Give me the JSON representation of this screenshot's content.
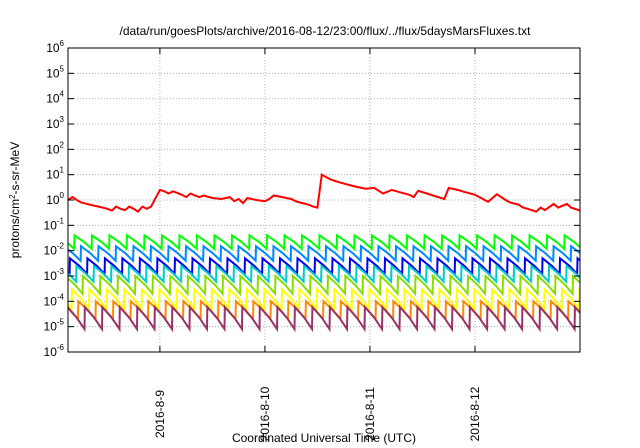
{
  "chart_data": {
    "type": "line",
    "title": "/data/run/goesPlots/archive/2016-08-12/23:00/flux/../flux/5daysMarsFluxes.txt",
    "xlabel": "Coordinated Universal Time (UTC)",
    "ylabel": "protons/cm2-s-sr-MeV",
    "ylabel_parts": {
      "pre": "protons/cm",
      "sup": "2",
      "post": "-s-sr-MeV"
    },
    "xscale": "time",
    "yscale": "log",
    "xlim": [
      "2016-08-08T03:00",
      "2016-08-13T00:00"
    ],
    "ylim": [
      1e-06,
      1000000.0
    ],
    "x_ticks": [
      "2016-8-9",
      "2016-8-10",
      "2016-8-11",
      "2016-8-12"
    ],
    "y_ticks": [
      {
        "base": "10",
        "exp": "-6"
      },
      {
        "base": "10",
        "exp": "-5"
      },
      {
        "base": "10",
        "exp": "-4"
      },
      {
        "base": "10",
        "exp": "-3"
      },
      {
        "base": "10",
        "exp": "-2"
      },
      {
        "base": "10",
        "exp": "-1"
      },
      {
        "base": "10",
        "exp": "0"
      },
      {
        "base": "10",
        "exp": "1"
      },
      {
        "base": "10",
        "exp": "2"
      },
      {
        "base": "10",
        "exp": "3"
      },
      {
        "base": "10",
        "exp": "4"
      },
      {
        "base": "10",
        "exp": "5"
      },
      {
        "base": "10",
        "exp": "6"
      }
    ],
    "grid": true,
    "series": [
      {
        "color": "#ff0000",
        "x": [
          "2016-08-08T03:00",
          "2016-08-08T04:00",
          "2016-08-08T05:00",
          "2016-08-08T06:00",
          "2016-08-08T08:00",
          "2016-08-08T10:00",
          "2016-08-08T12:00",
          "2016-08-08T13:00",
          "2016-08-08T14:00",
          "2016-08-08T15:00",
          "2016-08-08T16:00",
          "2016-08-08T17:00",
          "2016-08-08T18:00",
          "2016-08-08T19:00",
          "2016-08-08T20:00",
          "2016-08-08T21:00",
          "2016-08-08T22:00",
          "2016-08-09T00:00",
          "2016-08-09T01:00",
          "2016-08-09T02:00",
          "2016-08-09T03:00",
          "2016-08-09T04:00",
          "2016-08-09T05:00",
          "2016-08-09T06:00",
          "2016-08-09T07:00",
          "2016-08-09T08:00",
          "2016-08-09T09:00",
          "2016-08-09T10:00",
          "2016-08-09T12:00",
          "2016-08-09T14:00",
          "2016-08-09T16:00",
          "2016-08-09T17:00",
          "2016-08-09T18:00",
          "2016-08-09T19:00",
          "2016-08-09T20:00",
          "2016-08-09T22:00",
          "2016-08-10T00:00",
          "2016-08-10T01:00",
          "2016-08-10T02:00",
          "2016-08-10T04:00",
          "2016-08-10T06:00",
          "2016-08-10T07:00",
          "2016-08-10T08:00",
          "2016-08-10T10:00",
          "2016-08-10T11:00",
          "2016-08-10T12:00",
          "2016-08-10T13:00",
          "2016-08-10T14:00",
          "2016-08-10T15:00",
          "2016-08-10T17:00",
          "2016-08-10T19:00",
          "2016-08-10T21:00",
          "2016-08-10T23:00",
          "2016-08-11T01:00",
          "2016-08-11T02:00",
          "2016-08-11T03:00",
          "2016-08-11T05:00",
          "2016-08-11T07:00",
          "2016-08-11T09:00",
          "2016-08-11T10:00",
          "2016-08-11T11:00",
          "2016-08-11T13:00",
          "2016-08-11T15:00",
          "2016-08-11T17:00",
          "2016-08-11T18:00",
          "2016-08-11T20:00",
          "2016-08-11T22:00",
          "2016-08-12T00:00",
          "2016-08-12T01:00",
          "2016-08-12T03:00",
          "2016-08-12T05:00",
          "2016-08-12T06:00",
          "2016-08-12T07:00",
          "2016-08-12T08:00",
          "2016-08-12T10:00",
          "2016-08-12T11:00",
          "2016-08-12T12:00",
          "2016-08-12T14:00",
          "2016-08-12T15:00",
          "2016-08-12T16:00",
          "2016-08-12T18:00",
          "2016-08-12T19:00",
          "2016-08-12T21:00",
          "2016-08-12T22:00",
          "2016-08-13T00:00"
        ],
        "y": [
          1.0,
          1.3,
          1.0,
          0.8,
          0.65,
          0.55,
          0.45,
          0.38,
          0.55,
          0.45,
          0.4,
          0.55,
          0.45,
          0.35,
          0.55,
          0.45,
          0.55,
          2.5,
          2.2,
          1.8,
          2.2,
          1.9,
          1.6,
          1.3,
          1.8,
          1.5,
          1.3,
          1.5,
          1.2,
          1.1,
          1.3,
          0.9,
          1.1,
          0.75,
          1.2,
          1.0,
          0.9,
          1.1,
          1.5,
          1.3,
          1.1,
          0.9,
          0.8,
          0.65,
          0.55,
          0.5,
          10.0,
          8.0,
          6.5,
          5.0,
          4.0,
          3.3,
          2.8,
          3.0,
          2.3,
          1.8,
          2.5,
          2.0,
          1.6,
          1.3,
          2.3,
          1.8,
          1.4,
          1.1,
          3.0,
          2.5,
          2.0,
          1.6,
          1.3,
          0.85,
          1.7,
          1.3,
          1.0,
          0.8,
          0.65,
          0.5,
          0.45,
          0.35,
          0.5,
          0.4,
          0.7,
          0.5,
          0.7,
          0.5,
          0.38
        ]
      },
      {
        "color": "#00ff00",
        "base": 0.012,
        "peak": 0.04,
        "period_hours": 4
      },
      {
        "color": "#0088ff",
        "base": 0.004,
        "peak": 0.015,
        "period_hours": 4
      },
      {
        "color": "#0000ee",
        "base": 0.0012,
        "peak": 0.005,
        "period_hours": 4
      },
      {
        "color": "#00cccc",
        "base": 0.0006,
        "peak": 0.0025,
        "period_hours": 4
      },
      {
        "color": "#88dd00",
        "base": 0.0002,
        "peak": 0.001,
        "period_hours": 4
      },
      {
        "color": "#ffff00",
        "base": 5e-05,
        "peak": 0.0003,
        "period_hours": 4
      },
      {
        "color": "#ff8800",
        "base": 2e-05,
        "peak": 0.0001,
        "period_hours": 4
      },
      {
        "color": "#993366",
        "base": 8e-06,
        "peak": 6e-05,
        "period_hours": 4
      }
    ]
  }
}
